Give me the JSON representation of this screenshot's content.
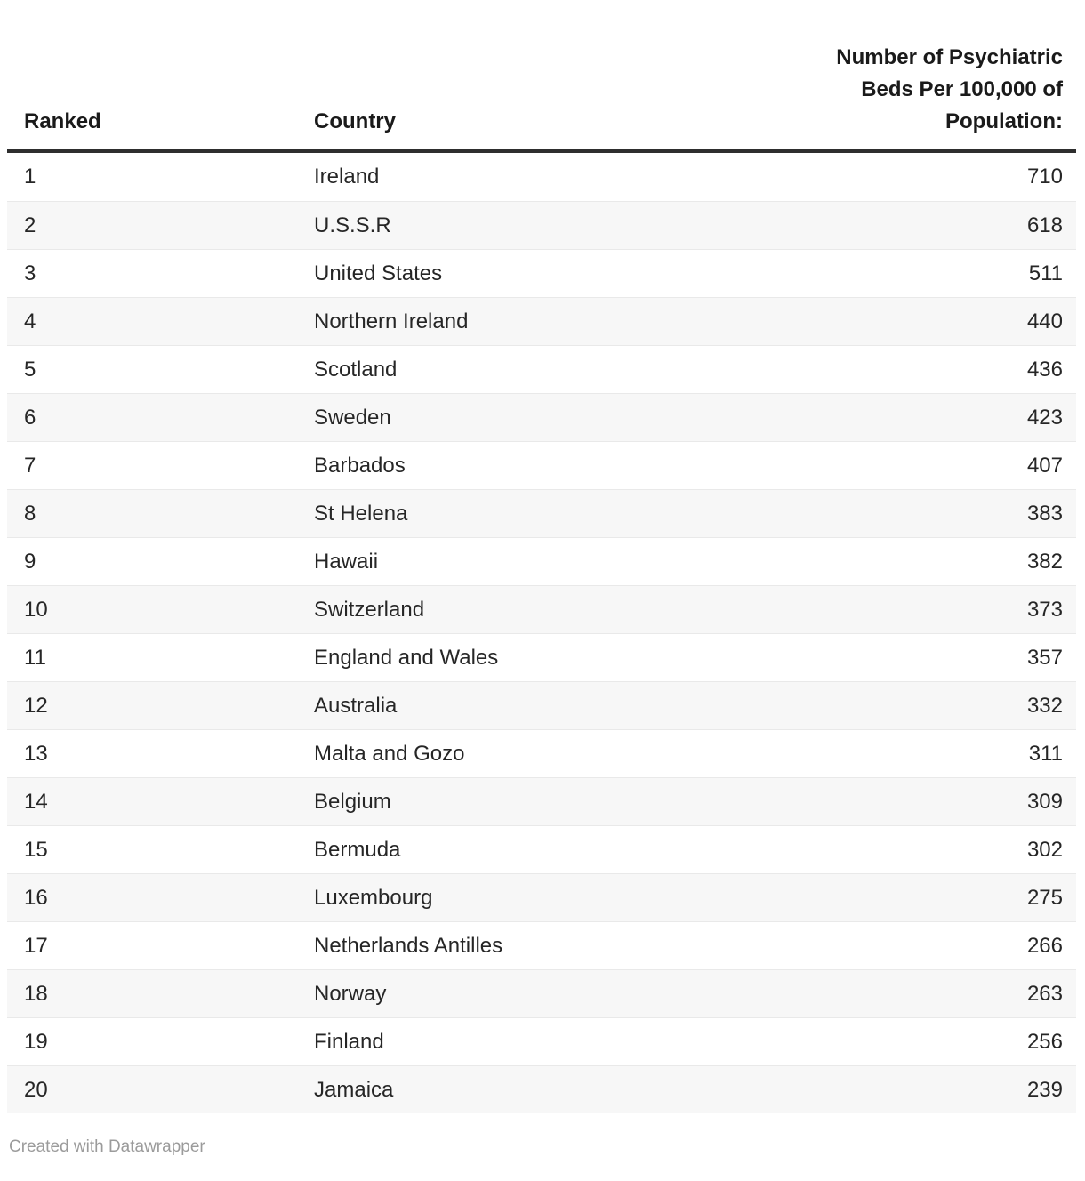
{
  "chart_data": {
    "type": "table",
    "columns": [
      "Ranked",
      "Country",
      "Number of Psychiatric Beds Per 100,000 of Population:"
    ],
    "rows": [
      {
        "rank": "1",
        "country": "Ireland",
        "value": "710"
      },
      {
        "rank": "2",
        "country": "U.S.S.R",
        "value": "618"
      },
      {
        "rank": "3",
        "country": "United States",
        "value": "511"
      },
      {
        "rank": "4",
        "country": "Northern Ireland",
        "value": "440"
      },
      {
        "rank": "5",
        "country": "Scotland",
        "value": "436"
      },
      {
        "rank": "6",
        "country": "Sweden",
        "value": "423"
      },
      {
        "rank": "7",
        "country": "Barbados",
        "value": "407"
      },
      {
        "rank": "8",
        "country": "St Helena",
        "value": "383"
      },
      {
        "rank": "9",
        "country": "Hawaii",
        "value": "382"
      },
      {
        "rank": "10",
        "country": "Switzerland",
        "value": "373"
      },
      {
        "rank": "11",
        "country": "England and Wales",
        "value": "357"
      },
      {
        "rank": "12",
        "country": "Australia",
        "value": "332"
      },
      {
        "rank": "13",
        "country": "Malta and Gozo",
        "value": "311"
      },
      {
        "rank": "14",
        "country": "Belgium",
        "value": "309"
      },
      {
        "rank": "15",
        "country": "Bermuda",
        "value": "302"
      },
      {
        "rank": "16",
        "country": "Luxembourg",
        "value": "275"
      },
      {
        "rank": "17",
        "country": "Netherlands Antilles",
        "value": "266"
      },
      {
        "rank": "18",
        "country": "Norway",
        "value": "263"
      },
      {
        "rank": "19",
        "country": "Finland",
        "value": "256"
      },
      {
        "rank": "20",
        "country": "Jamaica",
        "value": "239"
      }
    ],
    "layout": {
      "striped_rows": "even",
      "stripe_color": "#f7f7f7",
      "row_border_color": "#e9e9e9",
      "header_rule_color": "#2e2e2e",
      "value_alignment": "right"
    }
  },
  "footer": {
    "attribution": "Created with Datawrapper"
  }
}
